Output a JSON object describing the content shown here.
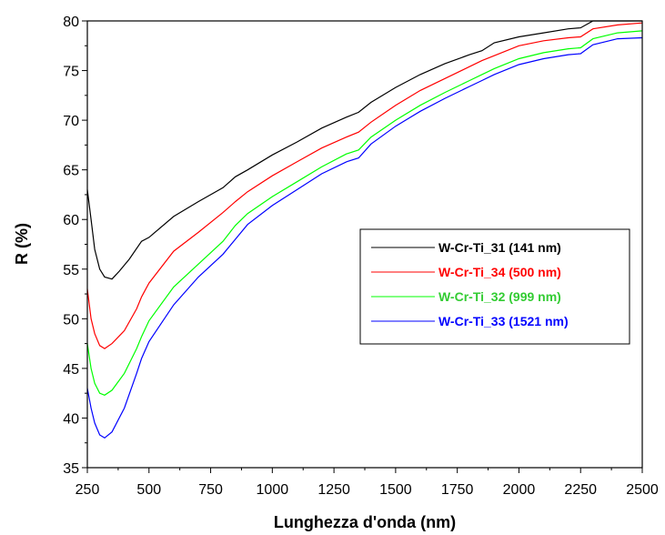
{
  "chart_data": {
    "type": "line",
    "xlabel": "Lunghezza d'onda (nm)",
    "ylabel": "R (%)",
    "xlim": [
      250,
      2500
    ],
    "ylim": [
      35,
      80
    ],
    "xticks": [
      250,
      500,
      750,
      1000,
      1250,
      1500,
      1750,
      2000,
      2250,
      2500
    ],
    "yticks": [
      35,
      40,
      45,
      50,
      55,
      60,
      65,
      70,
      75,
      80
    ],
    "grid": false,
    "legend_position": "middle-right",
    "series": [
      {
        "name": "W-Cr-Ti_31 (141 nm)",
        "color": "#000000",
        "points": [
          [
            250,
            63
          ],
          [
            265,
            60
          ],
          [
            280,
            57
          ],
          [
            300,
            55
          ],
          [
            320,
            54.2
          ],
          [
            350,
            54
          ],
          [
            380,
            54.8
          ],
          [
            420,
            56
          ],
          [
            470,
            57.8
          ],
          [
            500,
            58.2
          ],
          [
            600,
            60.3
          ],
          [
            700,
            61.8
          ],
          [
            800,
            63.2
          ],
          [
            850,
            64.3
          ],
          [
            900,
            65
          ],
          [
            1000,
            66.5
          ],
          [
            1100,
            67.8
          ],
          [
            1200,
            69.2
          ],
          [
            1300,
            70.3
          ],
          [
            1350,
            70.8
          ],
          [
            1400,
            71.8
          ],
          [
            1500,
            73.3
          ],
          [
            1600,
            74.6
          ],
          [
            1700,
            75.7
          ],
          [
            1800,
            76.6
          ],
          [
            1850,
            77
          ],
          [
            1900,
            77.8
          ],
          [
            2000,
            78.4
          ],
          [
            2100,
            78.8
          ],
          [
            2200,
            79.2
          ],
          [
            2250,
            79.3
          ],
          [
            2300,
            80
          ],
          [
            2400,
            80
          ],
          [
            2500,
            80
          ]
        ]
      },
      {
        "name": "W-Cr-Ti_34 (500 nm)",
        "color": "#ff0000",
        "points": [
          [
            250,
            53
          ],
          [
            265,
            50
          ],
          [
            280,
            48.5
          ],
          [
            300,
            47.3
          ],
          [
            320,
            47
          ],
          [
            350,
            47.5
          ],
          [
            400,
            48.8
          ],
          [
            450,
            51
          ],
          [
            470,
            52.2
          ],
          [
            500,
            53.6
          ],
          [
            600,
            56.8
          ],
          [
            700,
            58.7
          ],
          [
            800,
            60.7
          ],
          [
            850,
            61.8
          ],
          [
            900,
            62.8
          ],
          [
            1000,
            64.4
          ],
          [
            1100,
            65.8
          ],
          [
            1200,
            67.2
          ],
          [
            1300,
            68.3
          ],
          [
            1350,
            68.8
          ],
          [
            1400,
            69.8
          ],
          [
            1500,
            71.5
          ],
          [
            1600,
            73
          ],
          [
            1700,
            74.2
          ],
          [
            1800,
            75.4
          ],
          [
            1850,
            76
          ],
          [
            1900,
            76.5
          ],
          [
            2000,
            77.5
          ],
          [
            2100,
            78
          ],
          [
            2200,
            78.3
          ],
          [
            2250,
            78.4
          ],
          [
            2300,
            79.2
          ],
          [
            2400,
            79.6
          ],
          [
            2500,
            79.8
          ]
        ]
      },
      {
        "name": "W-Cr-Ti_32 (999 nm)",
        "color": "#00ff00",
        "points": [
          [
            250,
            47.5
          ],
          [
            265,
            45
          ],
          [
            280,
            43.5
          ],
          [
            300,
            42.5
          ],
          [
            320,
            42.3
          ],
          [
            350,
            42.8
          ],
          [
            400,
            44.5
          ],
          [
            450,
            47
          ],
          [
            470,
            48.2
          ],
          [
            500,
            49.8
          ],
          [
            600,
            53.2
          ],
          [
            700,
            55.5
          ],
          [
            800,
            57.8
          ],
          [
            850,
            59.4
          ],
          [
            900,
            60.6
          ],
          [
            1000,
            62.3
          ],
          [
            1100,
            63.8
          ],
          [
            1200,
            65.3
          ],
          [
            1300,
            66.6
          ],
          [
            1350,
            67
          ],
          [
            1400,
            68.3
          ],
          [
            1500,
            70
          ],
          [
            1600,
            71.5
          ],
          [
            1700,
            72.8
          ],
          [
            1800,
            74
          ],
          [
            1850,
            74.6
          ],
          [
            1900,
            75.2
          ],
          [
            2000,
            76.2
          ],
          [
            2100,
            76.8
          ],
          [
            2200,
            77.2
          ],
          [
            2250,
            77.3
          ],
          [
            2300,
            78.2
          ],
          [
            2400,
            78.8
          ],
          [
            2500,
            79
          ]
        ]
      },
      {
        "name": "W-Cr-Ti_33 (1521 nm)",
        "color": "#0000ff",
        "points": [
          [
            250,
            43
          ],
          [
            265,
            41
          ],
          [
            280,
            39.5
          ],
          [
            300,
            38.3
          ],
          [
            320,
            38
          ],
          [
            350,
            38.6
          ],
          [
            400,
            41
          ],
          [
            450,
            44.5
          ],
          [
            470,
            46
          ],
          [
            500,
            47.7
          ],
          [
            600,
            51.4
          ],
          [
            700,
            54.2
          ],
          [
            800,
            56.5
          ],
          [
            850,
            58
          ],
          [
            900,
            59.5
          ],
          [
            1000,
            61.4
          ],
          [
            1100,
            63
          ],
          [
            1200,
            64.6
          ],
          [
            1300,
            65.8
          ],
          [
            1350,
            66.2
          ],
          [
            1400,
            67.6
          ],
          [
            1500,
            69.4
          ],
          [
            1600,
            70.9
          ],
          [
            1700,
            72.2
          ],
          [
            1800,
            73.4
          ],
          [
            1850,
            74
          ],
          [
            1900,
            74.6
          ],
          [
            2000,
            75.6
          ],
          [
            2100,
            76.2
          ],
          [
            2200,
            76.6
          ],
          [
            2250,
            76.7
          ],
          [
            2300,
            77.6
          ],
          [
            2400,
            78.2
          ],
          [
            2500,
            78.3
          ]
        ]
      }
    ]
  }
}
